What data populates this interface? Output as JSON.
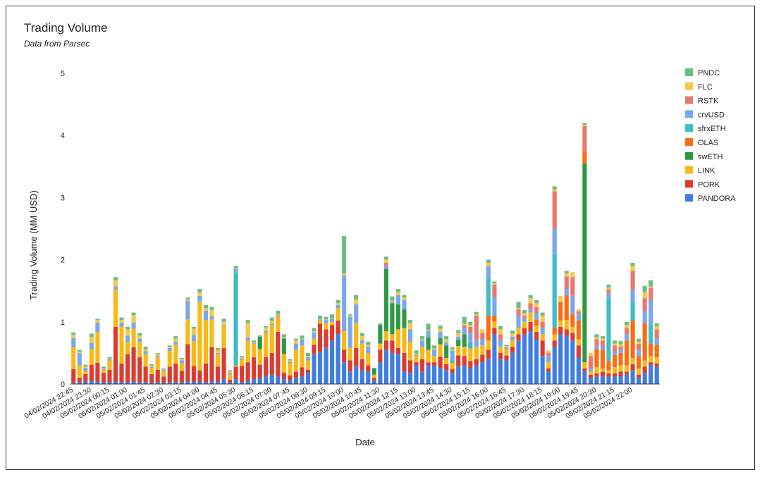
{
  "chart_data": {
    "type": "bar",
    "stacked": true,
    "title": "Trading Volume",
    "subtitle": "Data from Parsec",
    "xlabel": "Date",
    "ylabel": "Trading Volume (MM USD)",
    "ylim": [
      0,
      5
    ],
    "yticks": [
      0,
      1,
      2,
      3,
      4,
      5
    ],
    "grid": false,
    "legend_position": "right",
    "x_tick_labels": [
      "04/02/2024 22:45",
      "04/02/2024 23:30",
      "05/02/2024 00:15",
      "05/02/2024 01:00",
      "05/02/2024 01:45",
      "05/02/2024 02:30",
      "05/02/2024 03:15",
      "05/02/2024 04:00",
      "05/02/2024 04:45",
      "05/02/2024 05:30",
      "05/02/2024 06:15",
      "05/02/2024 07:00",
      "05/02/2024 07:45",
      "05/02/2024 08:30",
      "05/02/2024 09:15",
      "05/02/2024 10:00",
      "05/02/2024 10:45",
      "05/02/2024 11:30",
      "05/02/2024 12:15",
      "05/02/2024 13:00",
      "05/02/2024 13:45",
      "05/02/2024 14:30",
      "05/02/2024 15:15",
      "05/02/2024 16:00",
      "05/02/2024 16:45",
      "05/02/2024 17:30",
      "05/02/2024 18:15",
      "05/02/2024 19:00",
      "05/02/2024 19:45",
      "05/02/2024 20:30",
      "05/02/2024 21:15",
      "05/02/2024 22:00"
    ],
    "bars_per_tick": 3,
    "series_order_bottom_to_top": [
      "PANDORA",
      "PORK",
      "LINK",
      "swETH",
      "OLAS",
      "sfrxETH",
      "crvUSD",
      "RSTK",
      "FLC",
      "PNDC"
    ],
    "legend_order": [
      "PNDC",
      "FLC",
      "RSTK",
      "crvUSD",
      "sfrxETH",
      "OLAS",
      "swETH",
      "LINK",
      "PORK",
      "PANDORA"
    ],
    "colors": {
      "PNDC": "#6abf82",
      "FLC": "#f6c84a",
      "RSTK": "#e87970",
      "crvUSD": "#7ba7ec",
      "sfrxETH": "#3fbcc4",
      "OLAS": "#fb6d12",
      "swETH": "#2e9944",
      "LINK": "#f9b915",
      "PORK": "#dc3c30",
      "PANDORA": "#3f7ee0"
    },
    "totals": [
      0.83,
      0.55,
      0.31,
      0.81,
      1.05,
      0.28,
      0.43,
      1.72,
      1.07,
      0.92,
      1.15,
      0.82,
      0.6,
      0.32,
      0.5,
      0.25,
      0.62,
      0.77,
      0.42,
      1.39,
      0.92,
      1.53,
      1.27,
      1.24,
      0.58,
      1.05,
      0.22,
      1.9,
      0.45,
      1.03,
      0.7,
      0.69,
      0.93,
      1.07,
      1.18,
      0.55,
      0.4,
      0.73,
      0.78,
      0.5,
      0.9,
      1.1,
      1.08,
      1.12,
      1.35,
      2.38,
      1.12,
      1.43,
      0.82,
      0.68,
      0.26,
      0.98,
      2.1,
      1.41,
      1.53,
      1.43,
      1.03,
      0.54,
      0.87,
      0.97,
      0.62,
      0.94,
      0.77,
      0.59,
      0.87,
      1.08,
      0.9,
      1.16,
      0.88,
      2.0,
      1.65,
      0.93,
      0.63,
      0.86,
      1.32,
      1.19,
      1.48,
      1.35,
      1.15,
      0.54,
      3.18,
      1.42,
      1.82,
      1.8,
      1.2,
      4.2,
      0.5,
      0.8,
      0.77,
      1.6,
      0.7,
      0.69,
      1.0,
      1.95,
      0.73,
      1.58,
      1.47,
      0.98
    ],
    "compositions": {
      "PANDORA": [
        0.02,
        0.03,
        0.04,
        0.05,
        0.04,
        0.03,
        0.03,
        0.04,
        0.03,
        0.03,
        0.04,
        0.03,
        0.03,
        0.02,
        0.03,
        0.02,
        0.03,
        0.03,
        0.03,
        0.04,
        0.04,
        0.04,
        0.03,
        0.04,
        0.04,
        0.08,
        0.02,
        0.08,
        0.03,
        0.05,
        0.08,
        0.09,
        0.13,
        0.15,
        0.12,
        0.08,
        0.06,
        0.1,
        0.12,
        0.18,
        0.48,
        0.52,
        0.58,
        0.7,
        0.8,
        0.35,
        0.2,
        0.28,
        0.22,
        0.2,
        0.06,
        0.35,
        0.55,
        0.5,
        0.48,
        0.2,
        0.18,
        0.3,
        0.2,
        0.3,
        0.3,
        0.26,
        0.22,
        0.18,
        0.28,
        0.3,
        0.25,
        0.3,
        0.35,
        0.4,
        0.8,
        0.4,
        0.38,
        0.5,
        0.7,
        0.8,
        0.85,
        0.72,
        0.45,
        0.2,
        0.6,
        0.8,
        0.78,
        0.7,
        0.42,
        0.2,
        0.1,
        0.12,
        0.12,
        0.12,
        0.12,
        0.12,
        0.15,
        0.22,
        0.1,
        0.18,
        0.3,
        0.28
      ],
      "PORK": [
        0.22,
        0.07,
        0.12,
        0.26,
        0.3,
        0.15,
        0.2,
        0.88,
        0.3,
        0.45,
        0.55,
        0.4,
        0.25,
        0.14,
        0.2,
        0.1,
        0.25,
        0.3,
        0.18,
        0.6,
        0.25,
        0.18,
        0.3,
        0.55,
        0.24,
        0.5,
        0.05,
        0.2,
        0.26,
        0.3,
        0.35,
        0.22,
        0.3,
        0.35,
        0.72,
        0.1,
        0.08,
        0.1,
        0.15,
        0.05,
        0.15,
        0.45,
        0.3,
        0.25,
        0.22,
        0.2,
        0.18,
        0.3,
        0.18,
        0.1,
        0.04,
        0.2,
        0.15,
        0.2,
        0.1,
        0.3,
        0.2,
        0.05,
        0.2,
        0.05,
        0.05,
        0.18,
        0.1,
        0.06,
        0.18,
        0.15,
        0.12,
        0.1,
        0.12,
        0.15,
        0.1,
        0.1,
        0.08,
        0.1,
        0.1,
        0.1,
        0.15,
        0.12,
        0.25,
        0.05,
        0.1,
        0.12,
        0.1,
        0.12,
        0.2,
        0.05,
        0.05,
        0.05,
        0.08,
        0.05,
        0.05,
        0.08,
        0.05,
        0.1,
        0.05,
        0.1,
        0.05,
        0.05
      ],
      "LINK": [
        0.35,
        0.2,
        0.05,
        0.25,
        0.5,
        0.05,
        0.15,
        0.6,
        0.6,
        0.2,
        0.3,
        0.25,
        0.2,
        0.1,
        0.2,
        0.08,
        0.25,
        0.3,
        0.12,
        0.4,
        0.4,
        1.1,
        0.7,
        0.45,
        0.2,
        0.35,
        0.08,
        0.02,
        0.1,
        0.35,
        0.22,
        0.25,
        0.4,
        0.45,
        0.25,
        0.3,
        0.2,
        0.35,
        0.35,
        0.15,
        0.1,
        0.05,
        0.1,
        0.05,
        0.2,
        0.3,
        0.2,
        0.4,
        0.25,
        0.2,
        0.05,
        0.1,
        0.15,
        0.1,
        0.3,
        0.4,
        0.3,
        0.1,
        0.2,
        0.2,
        0.1,
        0.2,
        0.1,
        0.1,
        0.15,
        0.15,
        0.2,
        0.2,
        0.15,
        0.15,
        0.1,
        0.1,
        0.1,
        0.1,
        0.1,
        0.1,
        0.15,
        0.1,
        0.1,
        0.1,
        0.1,
        0.1,
        0.15,
        0.1,
        0.1,
        0.1,
        0.05,
        0.1,
        0.05,
        0.05,
        0.1,
        0.1,
        0.1,
        0.1,
        0.1,
        0.1,
        0.1,
        0.1
      ],
      "swETH": [
        0,
        0,
        0,
        0,
        0,
        0,
        0,
        0,
        0,
        0,
        0,
        0,
        0,
        0,
        0,
        0,
        0,
        0,
        0,
        0,
        0,
        0,
        0,
        0,
        0,
        0,
        0,
        0,
        0,
        0,
        0,
        0.2,
        0,
        0,
        0,
        0.25,
        0,
        0,
        0,
        0,
        0,
        0,
        0,
        0,
        0,
        0,
        0,
        0,
        0,
        0,
        0.1,
        0.3,
        1.0,
        0.5,
        0.4,
        0.3,
        0,
        0,
        0,
        0.2,
        0,
        0.1,
        0.2,
        0,
        0.1,
        0.2,
        0,
        0,
        0,
        0,
        0,
        0,
        0,
        0,
        0,
        0,
        0,
        0,
        0,
        0,
        0,
        0,
        0,
        0,
        0,
        3.2,
        0,
        0,
        0,
        0,
        0,
        0,
        0,
        0,
        0,
        0,
        0,
        0
      ],
      "OLAS": [
        0,
        0,
        0,
        0,
        0,
        0,
        0,
        0,
        0,
        0,
        0,
        0,
        0,
        0,
        0,
        0,
        0,
        0,
        0,
        0,
        0,
        0,
        0,
        0,
        0,
        0,
        0,
        0,
        0,
        0,
        0,
        0,
        0,
        0,
        0,
        0,
        0,
        0,
        0,
        0,
        0,
        0,
        0,
        0,
        0,
        0,
        0,
        0,
        0,
        0,
        0,
        0,
        0,
        0,
        0,
        0,
        0,
        0,
        0,
        0,
        0,
        0,
        0,
        0,
        0,
        0,
        0,
        0,
        0,
        0.4,
        0.1,
        0,
        0,
        0,
        0,
        0,
        0,
        0.1,
        0,
        0,
        0.1,
        0.3,
        0.4,
        0.2,
        0.3,
        0.2,
        0,
        0.3,
        0.3,
        0.15,
        0.2,
        0.2,
        0.4,
        0.6,
        0.2,
        0.6,
        0.2,
        0.2
      ],
      "sfrxETH": [
        0,
        0,
        0,
        0,
        0,
        0,
        0,
        0,
        0,
        0,
        0,
        0,
        0,
        0,
        0,
        0,
        0,
        0,
        0,
        0,
        0,
        0,
        0,
        0,
        0,
        0,
        0,
        1.5,
        0,
        0,
        0,
        0,
        0,
        0,
        0,
        0,
        0,
        0,
        0,
        0,
        0,
        0,
        0,
        0,
        0,
        0,
        0,
        0,
        0,
        0,
        0,
        0,
        0,
        0,
        0,
        0,
        0,
        0,
        0,
        0,
        0,
        0,
        0,
        0.05,
        0,
        0,
        0.1,
        0,
        0,
        0.6,
        0,
        0,
        0,
        0,
        0,
        0,
        0,
        0,
        0,
        0,
        1.2,
        0,
        0,
        0,
        0,
        0,
        0,
        0,
        0,
        1.0,
        0,
        0,
        0,
        0.3,
        0,
        0,
        0.3,
        0
      ],
      "crvUSD": [
        0.15,
        0.2,
        0.05,
        0.1,
        0.15,
        0.02,
        0.02,
        0.05,
        0.05,
        0.1,
        0.1,
        0.05,
        0.05,
        0.02,
        0.02,
        0.02,
        0.05,
        0.05,
        0.05,
        0.3,
        0.1,
        0.1,
        0.15,
        0.05,
        0.02,
        0.02,
        0.02,
        0.05,
        0.02,
        0.05,
        0.02,
        0.02,
        0.02,
        0.02,
        0.02,
        0.02,
        0.02,
        0.1,
        0.1,
        0.05,
        0.1,
        0.02,
        0.05,
        0.05,
        0.05,
        0.9,
        0.5,
        0.3,
        0.05,
        0.1,
        0.01,
        0.02,
        0.05,
        0.02,
        0.15,
        0.15,
        0.2,
        0.02,
        0.1,
        0.1,
        0.1,
        0.1,
        0.05,
        0.15,
        0.05,
        0.1,
        0.15,
        0.1,
        0.1,
        0.2,
        0.3,
        0.1,
        0.03,
        0.06,
        0.2,
        0.05,
        0.05,
        0.1,
        0.1,
        0.1,
        0.4,
        0,
        0.1,
        0.3,
        0.1,
        0,
        0.05,
        0.05,
        0.05,
        0.1,
        0.05,
        0.05,
        0.1,
        0.2,
        0.1,
        0.2,
        0.4,
        0.1
      ],
      "RSTK": [
        0,
        0,
        0,
        0,
        0,
        0,
        0,
        0,
        0,
        0,
        0,
        0,
        0,
        0,
        0,
        0,
        0,
        0,
        0,
        0,
        0,
        0,
        0,
        0,
        0,
        0,
        0,
        0,
        0,
        0,
        0,
        0,
        0,
        0,
        0,
        0,
        0,
        0,
        0,
        0,
        0,
        0,
        0,
        0,
        0,
        0,
        0,
        0,
        0,
        0,
        0,
        0,
        0.05,
        0,
        0,
        0,
        0,
        0,
        0,
        0,
        0,
        0,
        0,
        0,
        0,
        0.05,
        0.1,
        0.4,
        0.1,
        0,
        0.2,
        0.1,
        0,
        0,
        0.1,
        0.05,
        0.1,
        0.1,
        0.1,
        0.05,
        0.6,
        0,
        0.2,
        0.3,
        0.05,
        0.4,
        0.2,
        0.1,
        0.1,
        0.05,
        0.1,
        0.05,
        0.1,
        0.3,
        0.1,
        0.2,
        0.2,
        0.15
      ],
      "FLC": [
        0.05,
        0.02,
        0.02,
        0.1,
        0.04,
        0.01,
        0.01,
        0.1,
        0.05,
        0.1,
        0.12,
        0.05,
        0.03,
        0.02,
        0.03,
        0.01,
        0.02,
        0.05,
        0.02,
        0.02,
        0.1,
        0.05,
        0.04,
        0.1,
        0.05,
        0.05,
        0.03,
        0.01,
        0.02,
        0.23,
        0.01,
        0.01,
        0.06,
        0.05,
        0.01,
        0.01,
        0.02,
        0.05,
        0.01,
        0.02,
        0.02,
        0.01,
        0.01,
        0.01,
        0.03,
        0.03,
        0.02,
        0.08,
        0.07,
        0.03,
        0,
        0.01,
        0.05,
        0.02,
        0.05,
        0.04,
        0.1,
        0.02,
        0.02,
        0.02,
        0.02,
        0.05,
        0.05,
        0.02,
        0.06,
        0.02,
        0.03,
        0.02,
        0.06,
        0.05,
        0.02,
        0.08,
        0.02,
        0.05,
        0.02,
        0.04,
        0.08,
        0.06,
        0.1,
        0.04,
        0.03,
        0.1,
        0.05,
        0.08,
        0.03,
        0.02,
        0.05,
        0.03,
        0.03,
        0.03,
        0.03,
        0.04,
        0.05,
        0.08,
        0.03,
        0.1,
        0.02,
        0.05
      ],
      "PNDC": [
        0.04,
        0.03,
        0.03,
        0.05,
        0.02,
        0.02,
        0.02,
        0.05,
        0.04,
        0.04,
        0.04,
        0.04,
        0.04,
        0.02,
        0.02,
        0.02,
        0.02,
        0.04,
        0.02,
        0.03,
        0.03,
        0.06,
        0.05,
        0.05,
        0.03,
        0.05,
        0.02,
        0.04,
        0.02,
        0.05,
        0.02,
        0.0,
        0.02,
        0.05,
        0.06,
        0.04,
        0.02,
        0.03,
        0.05,
        0.05,
        0.05,
        0.05,
        0.04,
        0.06,
        0.05,
        0.6,
        0.02,
        0.07,
        0.05,
        0.05,
        0.0,
        0.0,
        0.05,
        0.07,
        0.05,
        0.04,
        0.05,
        0.05,
        0.05,
        0.1,
        0.05,
        0.05,
        0.05,
        0.03,
        0.05,
        0.11,
        0.05,
        0.04,
        0.0,
        0.05,
        0.03,
        0.05,
        0.02,
        0.05,
        0.1,
        0.05,
        0.05,
        0.05,
        0.05,
        0.0,
        0.05,
        0.0,
        0.04,
        0.0,
        0.0,
        0.03,
        0.0,
        0.05,
        0.04,
        0.05,
        0.05,
        0.05,
        0.05,
        0.05,
        0.05,
        0.1,
        0.1,
        0.05
      ]
    }
  }
}
